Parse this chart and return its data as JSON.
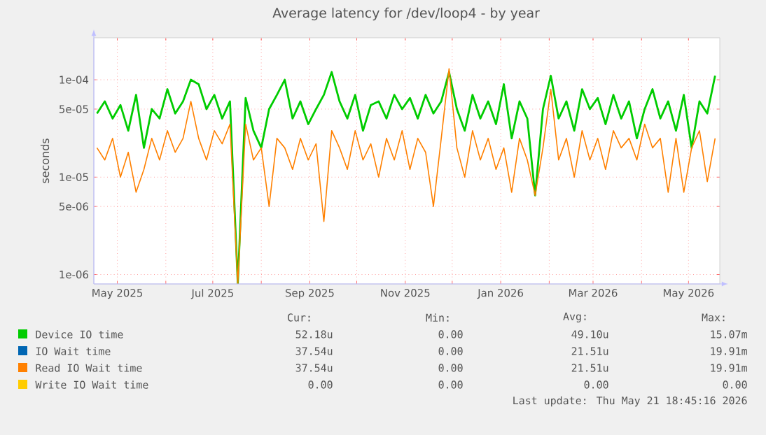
{
  "chart_data": {
    "type": "line",
    "title": "Average latency for /dev/loop4 - by year",
    "ylabel": "seconds",
    "log": "y",
    "grid": true,
    "legend": "bottom",
    "xlim": [
      "2025-04-16",
      "2026-05-21"
    ],
    "ylim": [
      8e-07,
      0.00027
    ],
    "yticks": [
      {
        "value": 1e-06,
        "label": "1e-06"
      },
      {
        "value": 5e-06,
        "label": "5e-06"
      },
      {
        "value": 1e-05,
        "label": "1e-05"
      },
      {
        "value": 5e-05,
        "label": "5e-05"
      },
      {
        "value": 0.0001,
        "label": "1e-04"
      }
    ],
    "xticks": [
      {
        "value": "2025-05-01",
        "label": "May 2025"
      },
      {
        "value": "2025-06-01",
        "label": null
      },
      {
        "value": "2025-07-01",
        "label": "Jul 2025"
      },
      {
        "value": "2025-08-01",
        "label": null
      },
      {
        "value": "2025-09-01",
        "label": "Sep 2025"
      },
      {
        "value": "2025-10-01",
        "label": null
      },
      {
        "value": "2025-11-01",
        "label": "Nov 2025"
      },
      {
        "value": "2025-12-01",
        "label": null
      },
      {
        "value": "2026-01-01",
        "label": "Jan 2026"
      },
      {
        "value": "2026-02-01",
        "label": null
      },
      {
        "value": "2026-03-01",
        "label": "Mar 2026"
      },
      {
        "value": "2026-04-01",
        "label": null
      },
      {
        "value": "2026-05-01",
        "label": "May 2026"
      }
    ],
    "x": [
      "2025-04-18",
      "2025-04-23",
      "2025-04-28",
      "2025-05-03",
      "2025-05-08",
      "2025-05-13",
      "2025-05-18",
      "2025-05-23",
      "2025-05-28",
      "2025-06-02",
      "2025-06-07",
      "2025-06-12",
      "2025-06-17",
      "2025-06-22",
      "2025-06-27",
      "2025-07-02",
      "2025-07-07",
      "2025-07-12",
      "2025-07-17",
      "2025-07-22",
      "2025-07-27",
      "2025-08-01",
      "2025-08-06",
      "2025-08-11",
      "2025-08-16",
      "2025-08-21",
      "2025-08-26",
      "2025-08-31",
      "2025-09-05",
      "2025-09-10",
      "2025-09-15",
      "2025-09-20",
      "2025-09-25",
      "2025-09-30",
      "2025-10-05",
      "2025-10-10",
      "2025-10-15",
      "2025-10-20",
      "2025-10-25",
      "2025-10-30",
      "2025-11-04",
      "2025-11-09",
      "2025-11-14",
      "2025-11-19",
      "2025-11-24",
      "2025-11-29",
      "2025-12-04",
      "2025-12-09",
      "2025-12-14",
      "2025-12-19",
      "2025-12-24",
      "2025-12-29",
      "2026-01-03",
      "2026-01-08",
      "2026-01-13",
      "2026-01-18",
      "2026-01-23",
      "2026-01-28",
      "2026-02-02",
      "2026-02-07",
      "2026-02-12",
      "2026-02-17",
      "2026-02-22",
      "2026-02-27",
      "2026-03-04",
      "2026-03-09",
      "2026-03-14",
      "2026-03-19",
      "2026-03-24",
      "2026-03-29",
      "2026-04-03",
      "2026-04-08",
      "2026-04-13",
      "2026-04-18",
      "2026-04-23",
      "2026-04-28",
      "2026-05-03",
      "2026-05-08",
      "2026-05-13",
      "2026-05-18"
    ],
    "series": [
      {
        "name": "Device IO time",
        "color": "#00cc00",
        "values": [
          4.5e-05,
          6e-05,
          4e-05,
          5.5e-05,
          3e-05,
          7e-05,
          2e-05,
          5e-05,
          4e-05,
          8e-05,
          4.5e-05,
          6e-05,
          0.0001,
          9e-05,
          5e-05,
          7e-05,
          4e-05,
          6e-05,
          8e-07,
          6.5e-05,
          3e-05,
          2e-05,
          5e-05,
          7e-05,
          0.0001,
          4e-05,
          6e-05,
          3.5e-05,
          5e-05,
          7e-05,
          0.00012,
          6e-05,
          4e-05,
          7e-05,
          3e-05,
          5.5e-05,
          6e-05,
          4e-05,
          7e-05,
          5e-05,
          6.5e-05,
          4e-05,
          7e-05,
          4.5e-05,
          6e-05,
          0.00012,
          5e-05,
          3e-05,
          7e-05,
          4e-05,
          6e-05,
          3.5e-05,
          9e-05,
          2.5e-05,
          6e-05,
          4e-05,
          6.5e-06,
          5e-05,
          0.00011,
          4e-05,
          6e-05,
          3e-05,
          8e-05,
          5e-05,
          6.5e-05,
          3.5e-05,
          7e-05,
          4e-05,
          6e-05,
          2.5e-05,
          5e-05,
          8e-05,
          4e-05,
          6e-05,
          3e-05,
          7e-05,
          2e-05,
          6e-05,
          4.5e-05,
          0.00011
        ]
      },
      {
        "name": "IO Wait time",
        "color": "#0066b3",
        "values": [
          null,
          null,
          null,
          null,
          null,
          null,
          null,
          null,
          null,
          null,
          null,
          null,
          null,
          null,
          null,
          null,
          null,
          null,
          null,
          null,
          null,
          null,
          null,
          null,
          null,
          null,
          null,
          null,
          null,
          null,
          null,
          null,
          null,
          null,
          null,
          null,
          null,
          null,
          null,
          null,
          null,
          null,
          null,
          null,
          null,
          null,
          null,
          null,
          null,
          null,
          null,
          null,
          null,
          null,
          null,
          null,
          null,
          null,
          null,
          null,
          null,
          null,
          null,
          null,
          null,
          null,
          null,
          null,
          null,
          null,
          null,
          null,
          null,
          null,
          null,
          null,
          null,
          null,
          null,
          null
        ]
      },
      {
        "name": "Read IO Wait time",
        "color": "#ff8000",
        "values": [
          2e-05,
          1.5e-05,
          2.5e-05,
          1e-05,
          1.8e-05,
          7e-06,
          1.2e-05,
          2.5e-05,
          1.5e-05,
          3e-05,
          1.8e-05,
          2.5e-05,
          6e-05,
          2.5e-05,
          1.5e-05,
          3e-05,
          2.2e-05,
          3.5e-05,
          8e-07,
          3.5e-05,
          1.5e-05,
          2e-05,
          5e-06,
          2.5e-05,
          2e-05,
          1.2e-05,
          2.5e-05,
          1.5e-05,
          2.2e-05,
          3.5e-06,
          3e-05,
          2e-05,
          1.2e-05,
          3e-05,
          1.5e-05,
          2.2e-05,
          1e-05,
          2.5e-05,
          1.5e-05,
          3e-05,
          1.2e-05,
          2.5e-05,
          1.8e-05,
          5e-06,
          2.5e-05,
          0.00013,
          2e-05,
          1e-05,
          3e-05,
          1.5e-05,
          2.5e-05,
          1.2e-05,
          2e-05,
          7e-06,
          2.5e-05,
          1.5e-05,
          6.5e-06,
          2e-05,
          8e-05,
          1.5e-05,
          2.5e-05,
          1e-05,
          3e-05,
          1.5e-05,
          2.5e-05,
          1.2e-05,
          3e-05,
          2e-05,
          2.5e-05,
          1.5e-05,
          3.5e-05,
          2e-05,
          2.5e-05,
          7e-06,
          2.5e-05,
          7e-06,
          2e-05,
          3e-05,
          9e-06,
          2.5e-05
        ]
      },
      {
        "name": "Write IO Wait time",
        "color": "#ffcc00",
        "values": [
          null,
          null,
          null,
          null,
          null,
          null,
          null,
          null,
          null,
          null,
          null,
          null,
          null,
          null,
          null,
          null,
          null,
          null,
          null,
          null,
          null,
          null,
          null,
          null,
          null,
          null,
          null,
          null,
          null,
          null,
          null,
          null,
          null,
          null,
          null,
          null,
          null,
          null,
          null,
          null,
          null,
          null,
          null,
          null,
          null,
          null,
          null,
          null,
          null,
          null,
          null,
          null,
          null,
          null,
          null,
          null,
          null,
          null,
          null,
          null,
          null,
          null,
          null,
          null,
          null,
          null,
          null,
          null,
          null,
          null,
          null,
          null,
          null,
          null,
          null,
          null,
          null,
          null,
          null,
          null
        ]
      }
    ],
    "annotations": [
      "Cur:",
      "Min:",
      "Avg:",
      "Max:",
      "52.18u",
      "0.00",
      "49.10u",
      "15.07m",
      "37.54u",
      "0.00",
      "21.51u",
      "19.91m",
      "37.54u",
      "0.00",
      "21.51u",
      "19.91m",
      "0.00",
      "0.00",
      "0.00",
      "0.00",
      "Last update: Thu May 21 18:45:16 2026"
    ]
  }
}
